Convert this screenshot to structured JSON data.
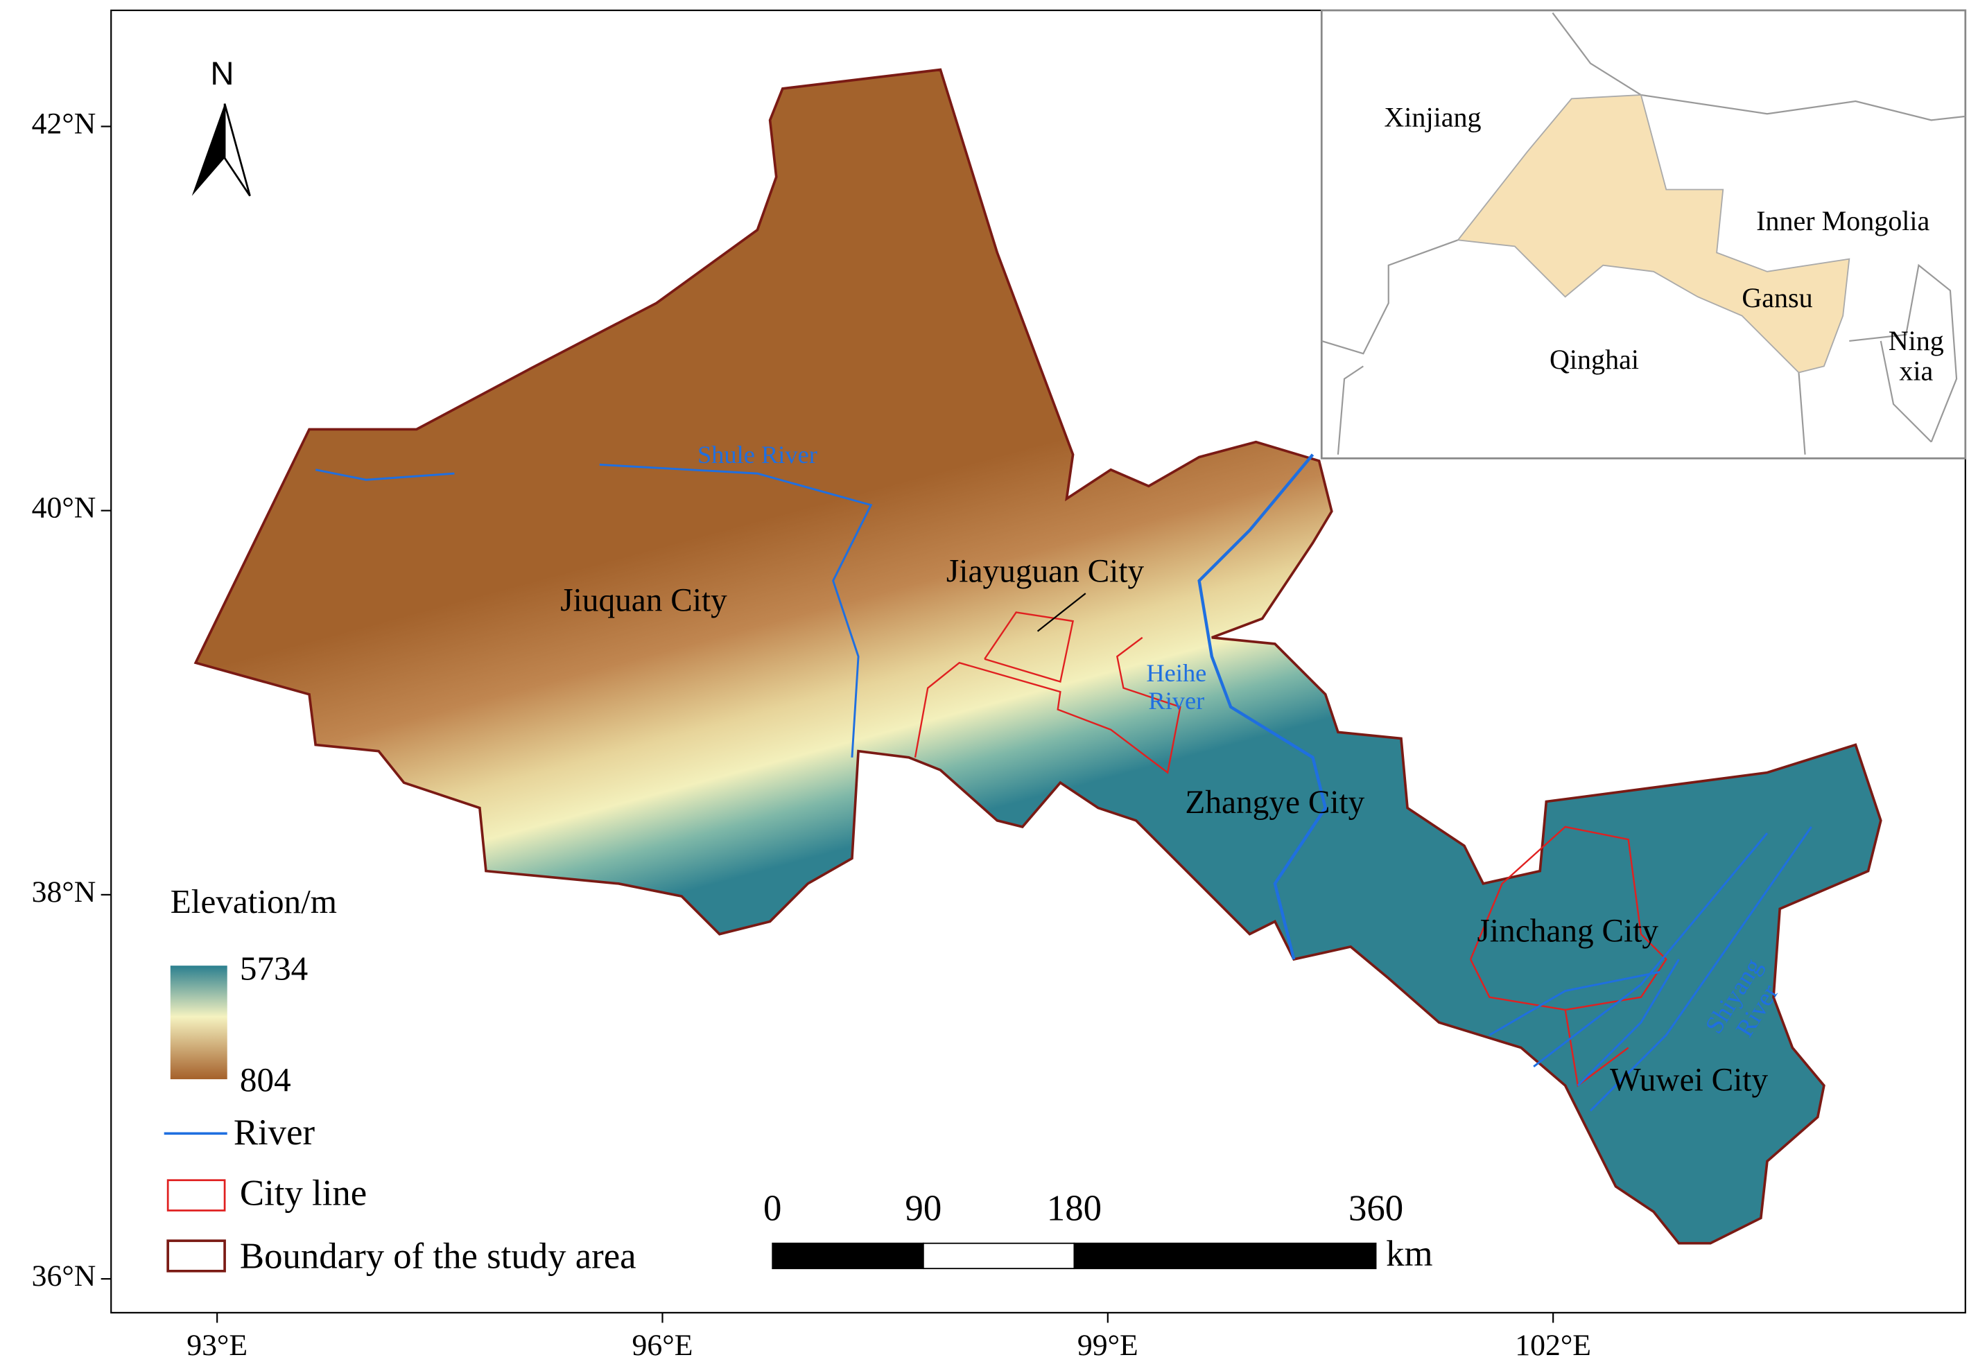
{
  "map": {
    "lat_ticks": [
      {
        "value": 42,
        "label": "42°N"
      },
      {
        "value": 40,
        "label": "40°N"
      },
      {
        "value": 38,
        "label": "38°N"
      },
      {
        "value": 36,
        "label": "36°N"
      }
    ],
    "lon_ticks": [
      {
        "value": 93,
        "label": "93°E"
      },
      {
        "value": 96,
        "label": "96°E"
      },
      {
        "value": 99,
        "label": "99°E"
      },
      {
        "value": 102,
        "label": "102°E"
      }
    ],
    "north_arrow": "N",
    "cities": [
      "Jiuquan City",
      "Jiayuguan City",
      "Zhangye City",
      "Jinchang City",
      "Wuwei City"
    ],
    "rivers": [
      {
        "lines": [
          "Shule River"
        ]
      },
      {
        "lines": [
          "Heihe",
          "River"
        ]
      },
      {
        "lines": [
          "Shiyang",
          "River"
        ]
      }
    ]
  },
  "legend": {
    "title": "Elevation/m",
    "max": 5734,
    "min": 804,
    "items": [
      "River",
      "City line",
      "Boundary of the study area"
    ]
  },
  "scale_bar": {
    "ticks": [
      0,
      90,
      180,
      360
    ],
    "unit": "km"
  },
  "inset": {
    "labels": [
      {
        "lines": [
          "Xinjiang"
        ]
      },
      {
        "lines": [
          "Inner Mongolia"
        ]
      },
      {
        "lines": [
          "Gansu"
        ]
      },
      {
        "lines": [
          "Qinghai"
        ]
      },
      {
        "lines": [
          "Ning",
          "xia"
        ]
      }
    ]
  }
}
